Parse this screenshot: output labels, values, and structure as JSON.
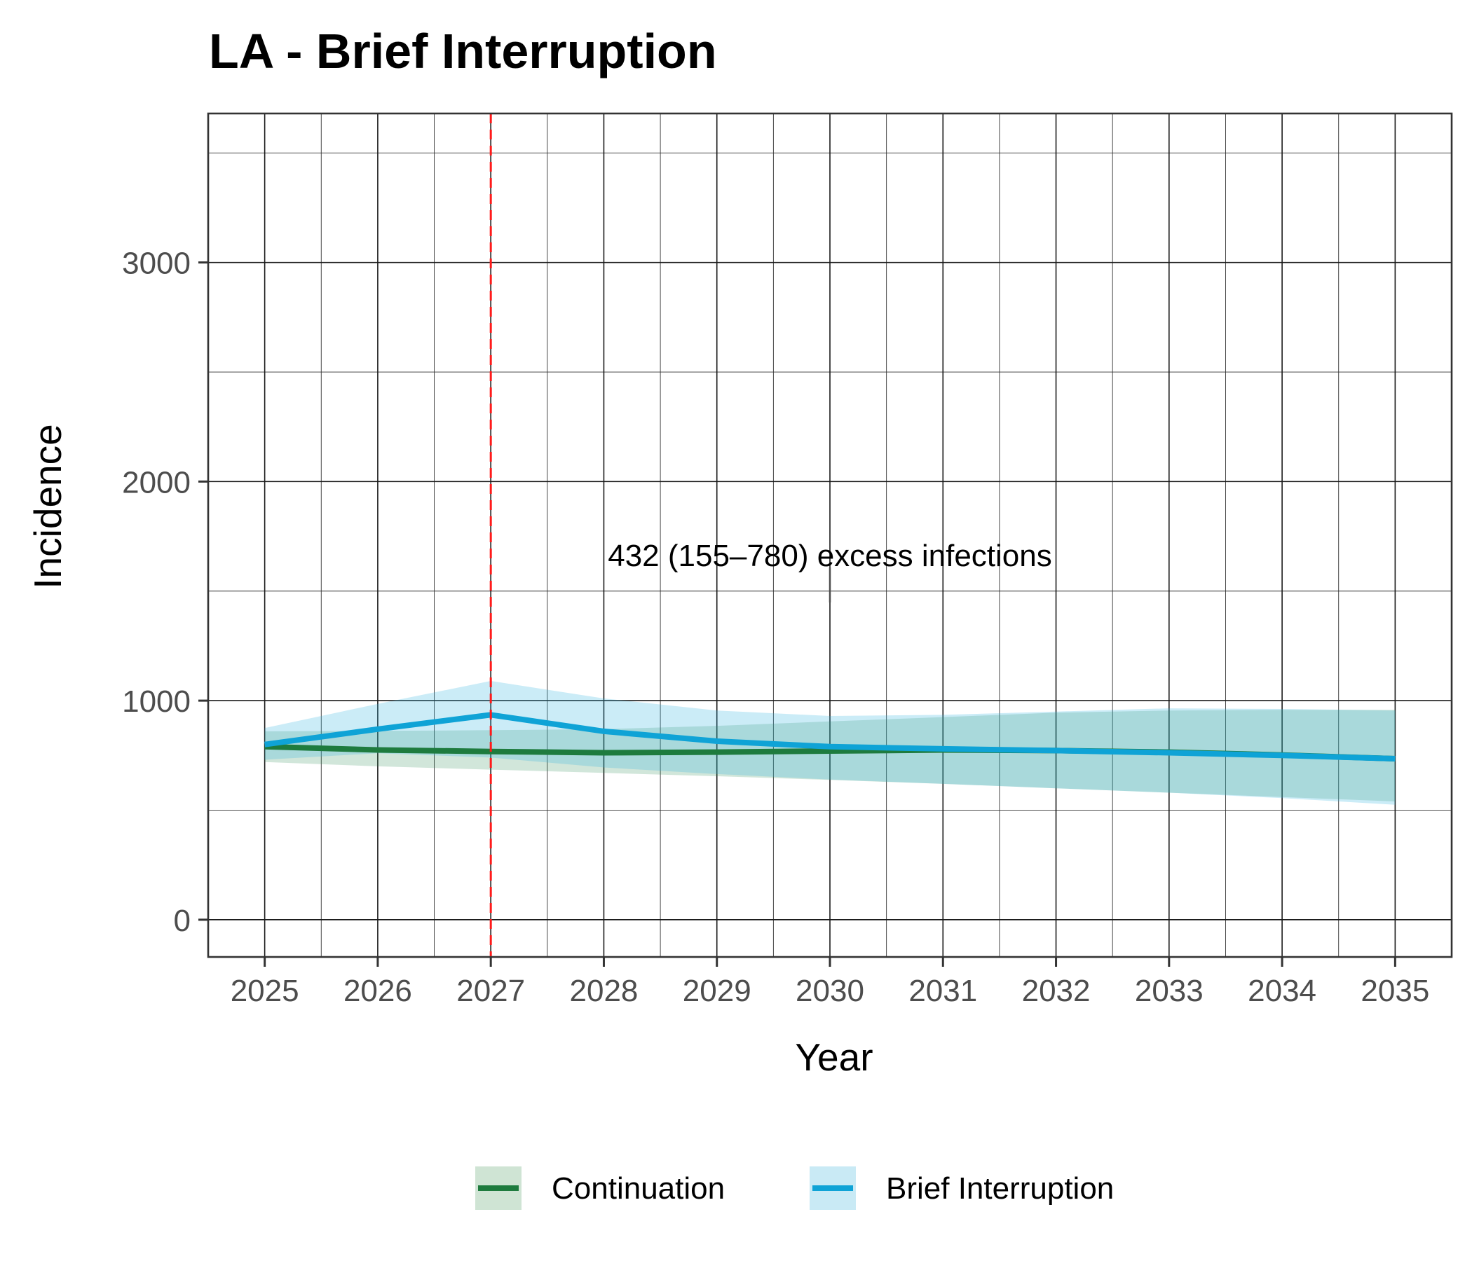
{
  "chart_data": {
    "type": "line",
    "title": "LA - Brief Interruption",
    "xlabel": "Year",
    "ylabel": "Incidence",
    "x": [
      2025,
      2026,
      2027,
      2028,
      2029,
      2030,
      2031,
      2032,
      2033,
      2034,
      2035
    ],
    "x_tick_labels": [
      "2025",
      "2026",
      "2027",
      "2028",
      "2029",
      "2030",
      "2031",
      "2032",
      "2033",
      "2034",
      "2035"
    ],
    "y_ticks": [
      0,
      1000,
      2000,
      3000
    ],
    "y_tick_labels": [
      "0",
      "1000",
      "2000",
      "3000"
    ],
    "xlim": [
      2024.5,
      2035.5
    ],
    "ylim": [
      -170,
      3680
    ],
    "grid": true,
    "legend_position": "bottom",
    "series": [
      {
        "name": "Continuation",
        "color": "#1e7b3e",
        "band_color": "#cfe4d4",
        "values": [
          790,
          775,
          768,
          762,
          765,
          770,
          775,
          772,
          765,
          752,
          735
        ],
        "lower": [
          720,
          700,
          685,
          670,
          655,
          638,
          620,
          600,
          580,
          560,
          540
        ],
        "upper": [
          860,
          862,
          865,
          870,
          885,
          905,
          925,
          945,
          955,
          958,
          958
        ]
      },
      {
        "name": "Brief Interruption",
        "color": "#0fa3d6",
        "band_color": "#c9eaf5",
        "values": [
          800,
          870,
          935,
          860,
          815,
          790,
          780,
          772,
          762,
          750,
          735
        ],
        "lower": [
          730,
          760,
          740,
          695,
          665,
          640,
          620,
          600,
          580,
          555,
          525
        ],
        "upper": [
          875,
          985,
          1090,
          1010,
          955,
          930,
          935,
          950,
          965,
          962,
          955
        ]
      }
    ],
    "vline": {
      "x": 2027,
      "color": "#ff1a1a",
      "style": "dashed"
    },
    "annotations": [
      {
        "text": "432 (155–780) excess infections",
        "x": 2030,
        "y": 1480
      }
    ]
  }
}
